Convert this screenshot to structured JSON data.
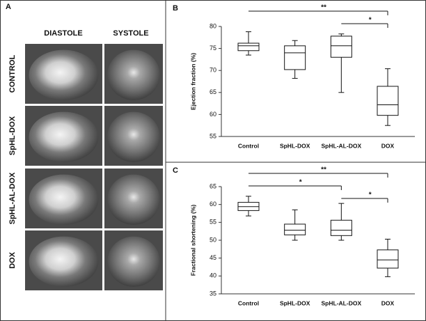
{
  "panel_a": {
    "label": "A",
    "columns": [
      "DIASTOLE",
      "SYSTOLE"
    ],
    "rows": [
      "CONTROL",
      "SpHL-DOX",
      "SpHL-AL-DOX",
      "DOX"
    ]
  },
  "chart_data": [
    {
      "type": "box",
      "panel": "B",
      "ylabel": "Ejection fraction (%)",
      "categories": [
        "Control",
        "SpHL-DOX",
        "SpHL-AL-DOX",
        "DOX"
      ],
      "values": [
        {
          "min": 73.5,
          "q1": 74.5,
          "median": 75.6,
          "q3": 76.2,
          "max": 78.8
        },
        {
          "min": 68.2,
          "q1": 70.2,
          "median": 74,
          "q3": 75.6,
          "max": 76.8
        },
        {
          "min": 65,
          "q1": 73,
          "median": 75.6,
          "q3": 77.8,
          "max": 78.3
        },
        {
          "min": 57.5,
          "q1": 59.8,
          "median": 62.2,
          "q3": 66.4,
          "max": 70.4
        }
      ],
      "ylim": [
        55,
        80
      ],
      "yticks": [
        55,
        60,
        65,
        70,
        75,
        80
      ],
      "significance": [
        {
          "from": 0,
          "to": 3,
          "label": "**"
        },
        {
          "from": 2,
          "to": 3,
          "label": "*"
        }
      ]
    },
    {
      "type": "box",
      "panel": "C",
      "ylabel": "Fractional shortening (%)",
      "categories": [
        "Control",
        "SpHL-DOX",
        "SpHL-AL-DOX",
        "DOX"
      ],
      "values": [
        {
          "min": 56.8,
          "q1": 58.3,
          "median": 59.4,
          "q3": 60.6,
          "max": 62.3
        },
        {
          "min": 50,
          "q1": 51.5,
          "median": 52.8,
          "q3": 54.5,
          "max": 58.5
        },
        {
          "min": 50,
          "q1": 51.3,
          "median": 52.8,
          "q3": 55.6,
          "max": 60.3
        },
        {
          "min": 39.8,
          "q1": 42.2,
          "median": 44.5,
          "q3": 47.3,
          "max": 50.3
        }
      ],
      "ylim": [
        35,
        65
      ],
      "yticks": [
        35,
        40,
        45,
        50,
        55,
        60,
        65
      ],
      "significance": [
        {
          "from": 0,
          "to": 3,
          "label": "**"
        },
        {
          "from": 0,
          "to": 2,
          "label": "*"
        },
        {
          "from": 2,
          "to": 3,
          "label": "*"
        }
      ]
    }
  ]
}
